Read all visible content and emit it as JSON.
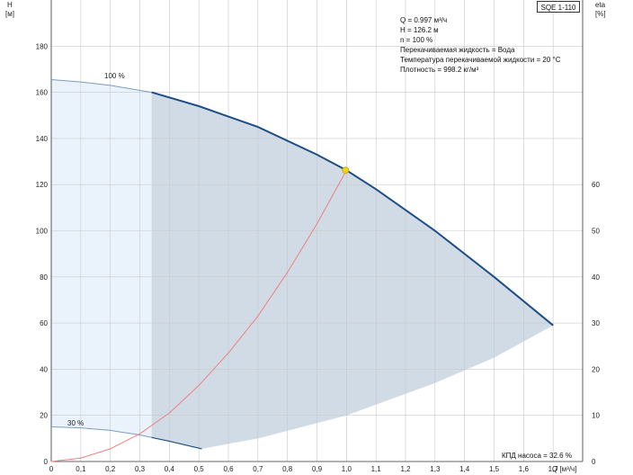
{
  "pump_model": "SQE 1-110",
  "colors": {
    "full_curve": "#1f4e85",
    "reduced_curve": "#1f4e85",
    "operating_range_fill": "#d0dbe6",
    "extended_range_fill": "#eaf3fc",
    "system_curve": "#f08080",
    "operating_point": "#f2d21b",
    "grid": "#c9c9c9"
  },
  "info": [
    "Q = 0.997 м³/ч",
    "H = 126.2 м",
    "n = 100 %",
    "Перекачиваемая жидкость = Вода",
    "Температура перекачиваемой жидкости = 20 °C",
    "Плотность = 998.2 кг/м³"
  ],
  "efficiency_note": "КПД насоса = 32.6 %",
  "chart_data": {
    "type": "line",
    "xlabel": "Q [м³/ч]",
    "ylabel_line1": "H",
    "ylabel_line2": "[м]",
    "y2label_line1": "eta",
    "y2label_line2": "[%]",
    "xlim": [
      0,
      1.8
    ],
    "ylim": [
      0,
      200
    ],
    "y2lim": [
      0,
      100
    ],
    "x_ticks": [
      0,
      0.1,
      0.2,
      0.3,
      0.4,
      0.5,
      0.6,
      0.7,
      0.8,
      0.9,
      1.0,
      1.1,
      1.2,
      1.3,
      1.4,
      1.5,
      1.6,
      1.7
    ],
    "x_tick_labels": [
      "0",
      "0,1",
      "0,2",
      "0,3",
      "0,4",
      "0,5",
      "0,6",
      "0,7",
      "0,8",
      "0,9",
      "1,0",
      "1,1",
      "1,2",
      "1,3",
      "1,4",
      "1,5",
      "1,6",
      "1,7"
    ],
    "y_ticks": [
      0,
      20,
      40,
      60,
      80,
      100,
      120,
      140,
      160,
      180
    ],
    "y2_ticks": [
      0,
      10,
      20,
      30,
      40,
      50,
      60
    ],
    "grid": true,
    "series": [
      {
        "name": "100 %",
        "x": [
          0,
          0.1,
          0.2,
          0.34,
          0.5,
          0.7,
          0.9,
          1.0,
          1.1,
          1.3,
          1.5,
          1.7
        ],
        "y": [
          165.5,
          164.5,
          163,
          160,
          154,
          145,
          133,
          126.2,
          118,
          100,
          80,
          59
        ]
      },
      {
        "name": "30 %",
        "x": [
          0,
          0.1,
          0.2,
          0.3,
          0.4,
          0.51
        ],
        "y": [
          15,
          14.6,
          13.5,
          11.5,
          8.8,
          5.5
        ]
      },
      {
        "name": "system",
        "x": [
          0,
          0.1,
          0.2,
          0.3,
          0.4,
          0.5,
          0.6,
          0.7,
          0.8,
          0.9,
          1.0
        ],
        "y": [
          0,
          1.5,
          5.5,
          12,
          21,
          33,
          47,
          63,
          82,
          103,
          126.2
        ]
      },
      {
        "name": "range_lower_boundary",
        "x": [
          0.51,
          0.7,
          1.0,
          1.3,
          1.5,
          1.7
        ],
        "y": [
          5.5,
          10,
          20,
          34,
          45,
          59
        ]
      }
    ],
    "operating_point": {
      "x": 0.997,
      "y": 126.2
    },
    "range_left_q": 0.34
  }
}
